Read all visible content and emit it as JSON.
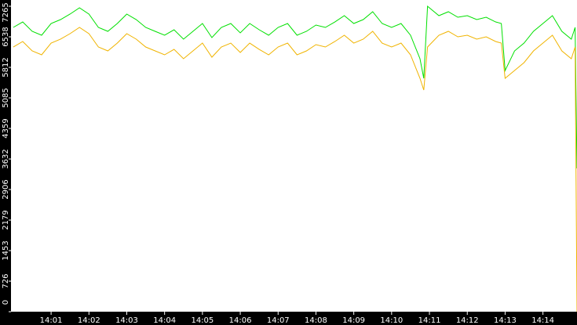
{
  "chart_data": {
    "type": "line",
    "xlim": [
      -0.06,
      14.9
    ],
    "xticks": [
      {
        "value": 1,
        "label": "14:01"
      },
      {
        "value": 2,
        "label": "14:02"
      },
      {
        "value": 3,
        "label": "14:03"
      },
      {
        "value": 4,
        "label": "14:04"
      },
      {
        "value": 5,
        "label": "14:05"
      },
      {
        "value": 6,
        "label": "14:06"
      },
      {
        "value": 7,
        "label": "14:07"
      },
      {
        "value": 8,
        "label": "14:08"
      },
      {
        "value": 9,
        "label": "14:09"
      },
      {
        "value": 10,
        "label": "14:10"
      },
      {
        "value": 11,
        "label": "14:11"
      },
      {
        "value": 12,
        "label": "14:12"
      },
      {
        "value": 13,
        "label": "14:13"
      },
      {
        "value": 14,
        "label": "14:14"
      }
    ],
    "ylim": [
      0,
      7265
    ],
    "yticks": [
      0,
      726,
      1453,
      2179,
      2906,
      3632,
      4359,
      5085,
      5812,
      6538,
      7265
    ],
    "x": [
      0,
      0.25,
      0.5,
      0.75,
      1,
      1.25,
      1.5,
      1.75,
      2,
      2.25,
      2.5,
      2.75,
      3,
      3.25,
      3.5,
      3.75,
      4,
      4.25,
      4.5,
      4.75,
      5,
      5.25,
      5.5,
      5.75,
      6,
      6.25,
      6.5,
      6.75,
      7,
      7.25,
      7.5,
      7.75,
      8,
      8.25,
      8.5,
      8.75,
      9,
      9.25,
      9.5,
      9.75,
      10,
      10.25,
      10.5,
      10.75,
      10.85,
      10.95,
      11.25,
      11.5,
      11.75,
      12,
      12.25,
      12.5,
      12.75,
      12.9,
      13,
      13.25,
      13.5,
      13.75,
      14,
      14.25,
      14.5,
      14.75,
      14.85,
      14.9
    ],
    "series": [
      {
        "color": "#00e000",
        "values": [
          6762,
          6892,
          6669,
          6576,
          6855,
          6948,
          7079,
          7228,
          7079,
          6762,
          6669,
          6855,
          7079,
          6948,
          6762,
          6669,
          6576,
          6706,
          6483,
          6669,
          6855,
          6520,
          6762,
          6855,
          6632,
          6855,
          6706,
          6576,
          6762,
          6855,
          6576,
          6669,
          6818,
          6762,
          6892,
          7041,
          6855,
          6948,
          7135,
          6855,
          6762,
          6855,
          6576,
          6017,
          5551,
          7265,
          7041,
          7135,
          7004,
          7041,
          6948,
          7004,
          6892,
          6855,
          5737,
          6203,
          6389,
          6669,
          6855,
          7041,
          6669,
          6483,
          6762,
          3409
        ]
      },
      {
        "color": "#f0b400",
        "values": [
          6296,
          6427,
          6203,
          6110,
          6389,
          6483,
          6613,
          6762,
          6613,
          6296,
          6203,
          6389,
          6613,
          6483,
          6296,
          6203,
          6110,
          6240,
          6017,
          6203,
          6389,
          6054,
          6296,
          6389,
          6166,
          6389,
          6240,
          6110,
          6296,
          6389,
          6110,
          6203,
          6352,
          6296,
          6427,
          6576,
          6389,
          6483,
          6669,
          6389,
          6296,
          6389,
          6110,
          5551,
          5272,
          6296,
          6576,
          6669,
          6538,
          6576,
          6483,
          6538,
          6427,
          6389,
          5551,
          5737,
          5924,
          6203,
          6389,
          6576,
          6203,
          6017,
          6296,
          0
        ]
      }
    ]
  }
}
